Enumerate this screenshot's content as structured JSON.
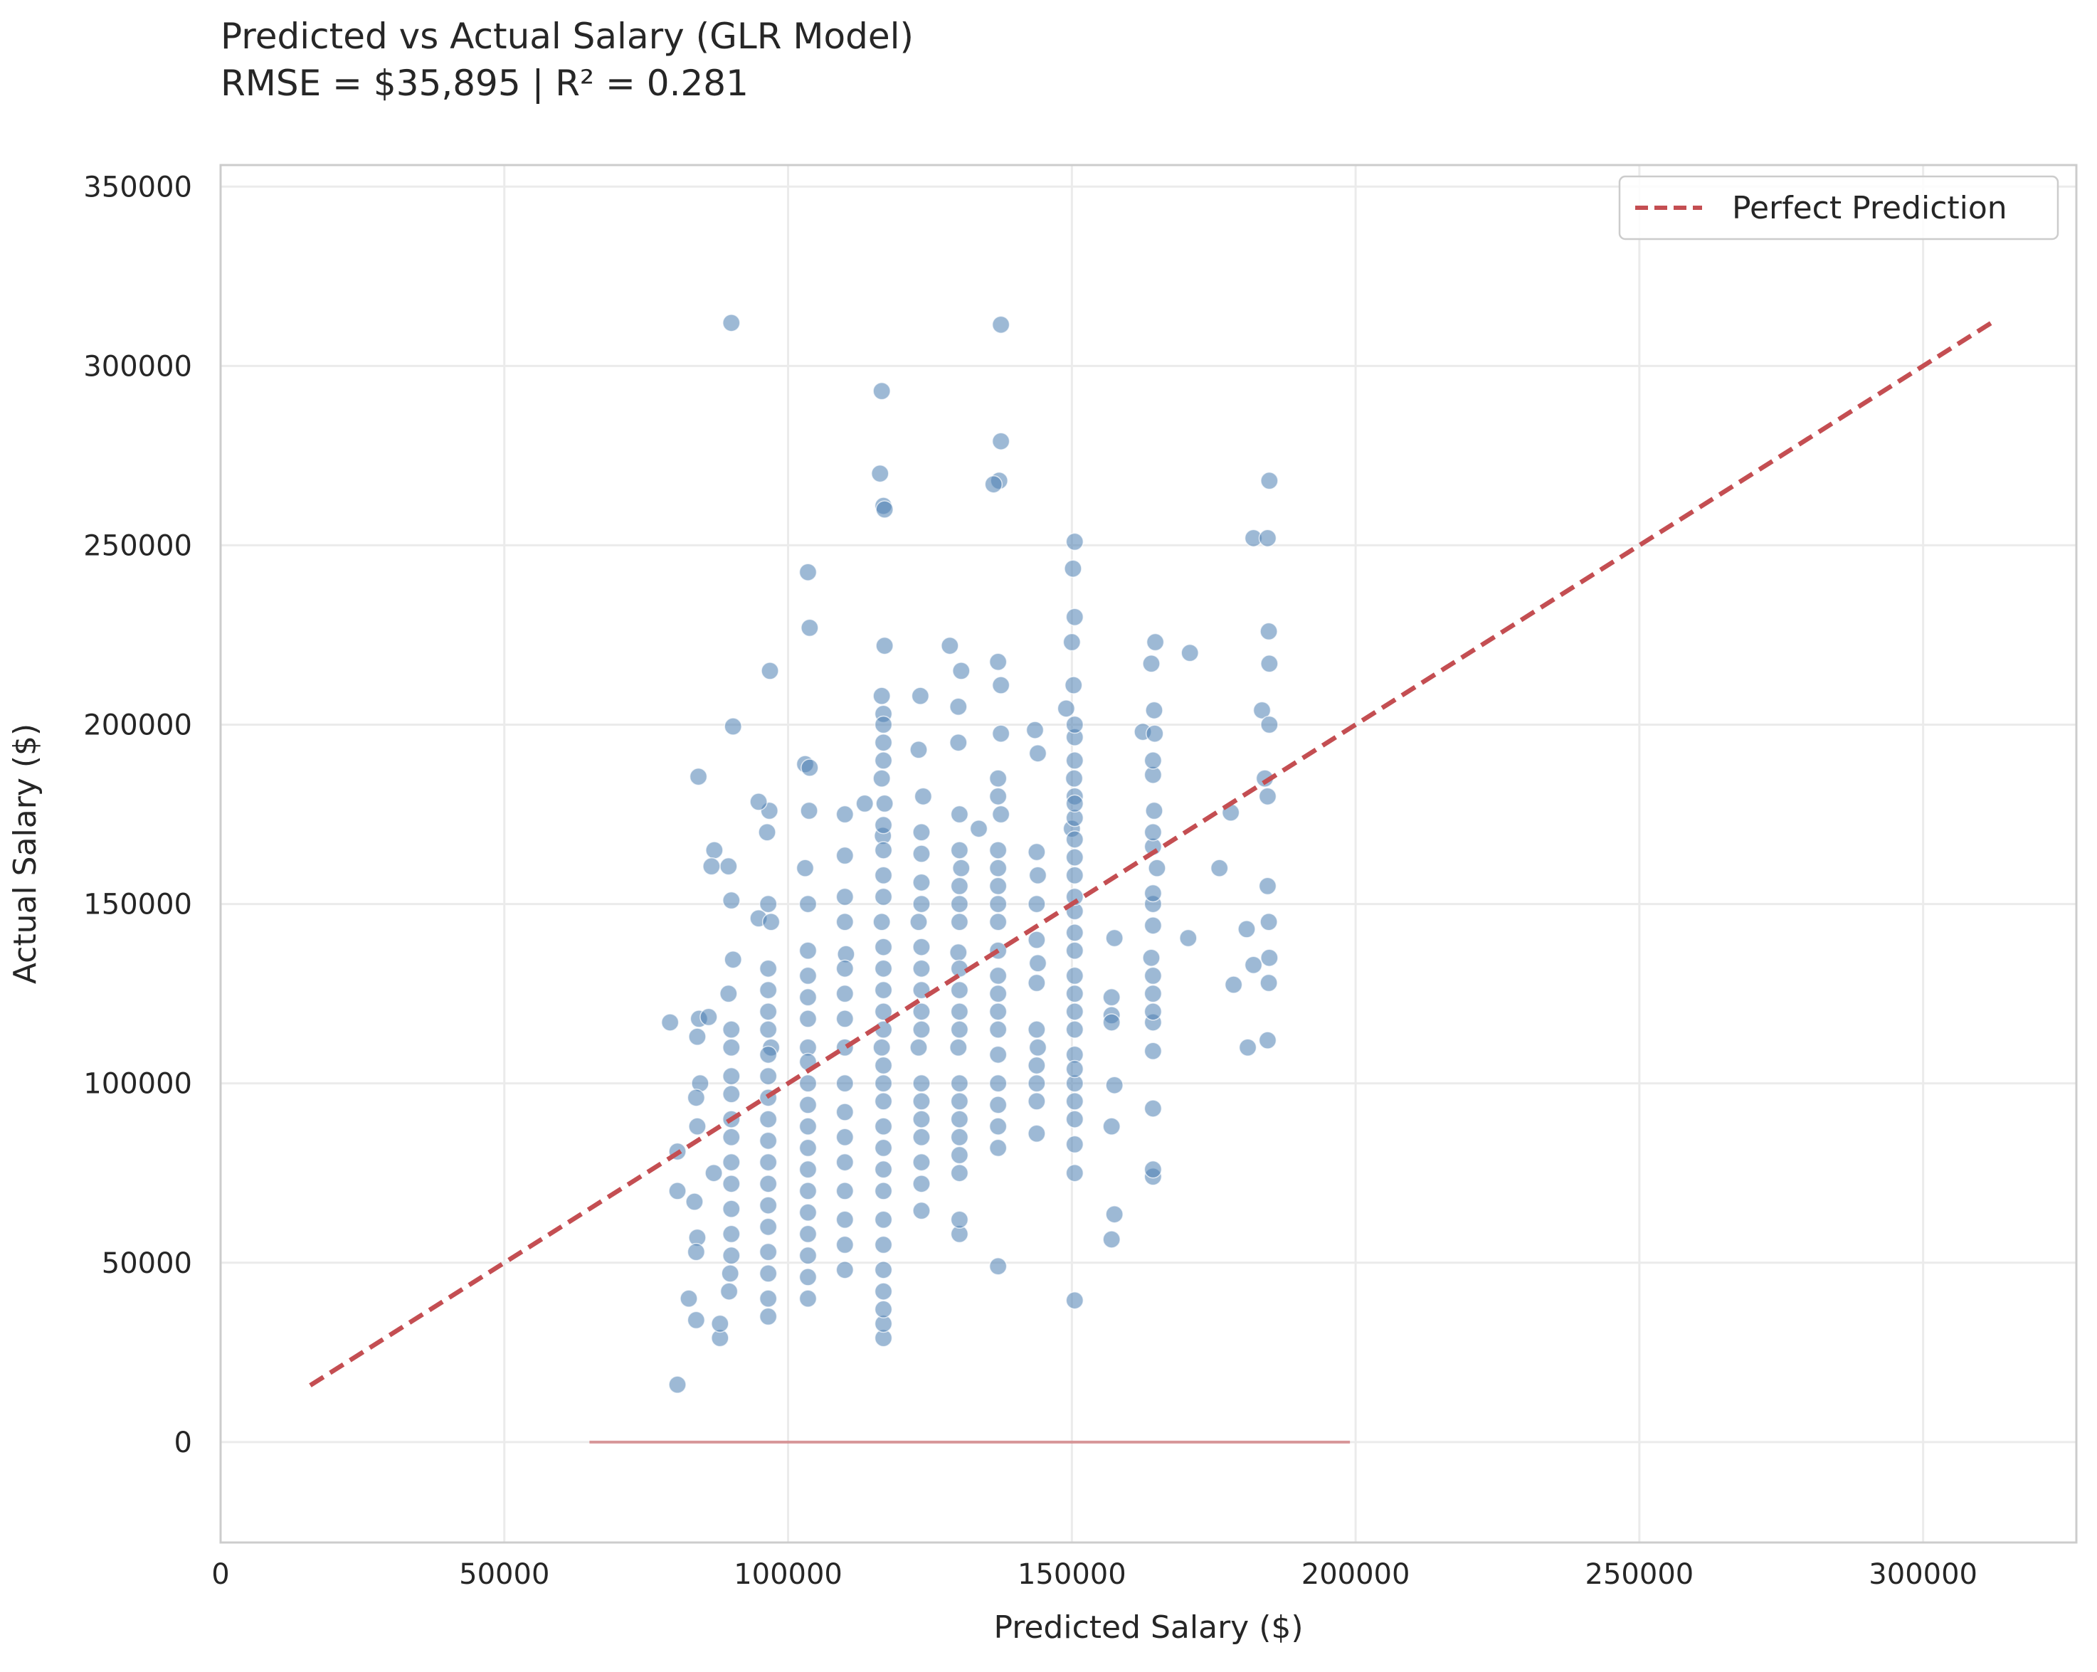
{
  "chart_data": {
    "type": "scatter",
    "title": "Predicted vs Actual Salary (GLR Model)",
    "subtitle": "RMSE = $35,895 | R² = 0.281",
    "xlabel": "Predicted Salary ($)",
    "ylabel": "Actual Salary ($)",
    "xlim": [
      0,
      327000
    ],
    "ylim": [
      -28000,
      356000
    ],
    "xticks": [
      "0",
      "50000",
      "100000",
      "150000",
      "200000",
      "250000",
      "300000"
    ],
    "yticks": [
      "0",
      "50000",
      "100000",
      "150000",
      "200000",
      "250000",
      "300000",
      "350000"
    ],
    "grid": true,
    "legend": {
      "position": "top-right",
      "entries": [
        "Perfect Prediction"
      ]
    },
    "reference_line": {
      "name": "Perfect Prediction",
      "x": [
        15800,
        312000
      ],
      "y": [
        15800,
        312000
      ],
      "color": "#c44e52",
      "style": "dashed"
    },
    "baseline_segment": {
      "x": [
        65000,
        199000
      ],
      "y": [
        0,
        0
      ],
      "color": "#c44e52"
    },
    "point_color": "#4c7fb3",
    "points": [
      [
        90000,
        312000
      ],
      [
        137500,
        311500
      ],
      [
        116500,
        293000
      ],
      [
        116200,
        270000
      ],
      [
        116800,
        261000
      ],
      [
        117000,
        260000
      ],
      [
        137500,
        279000
      ],
      [
        137200,
        268000
      ],
      [
        136200,
        267000
      ],
      [
        184800,
        268000
      ],
      [
        103500,
        242500
      ],
      [
        150500,
        251000
      ],
      [
        150200,
        243500
      ],
      [
        182000,
        252000
      ],
      [
        184500,
        252000
      ],
      [
        103800,
        227000
      ],
      [
        150500,
        230000
      ],
      [
        150000,
        223000
      ],
      [
        164700,
        223000
      ],
      [
        184700,
        226000
      ],
      [
        117000,
        222000
      ],
      [
        128500,
        222000
      ],
      [
        170800,
        220000
      ],
      [
        96800,
        215000
      ],
      [
        130500,
        215000
      ],
      [
        137000,
        217500
      ],
      [
        164000,
        217000
      ],
      [
        184800,
        217000
      ],
      [
        150300,
        211000
      ],
      [
        137500,
        211000
      ],
      [
        90300,
        199500
      ],
      [
        116500,
        208000
      ],
      [
        123300,
        208000
      ],
      [
        164500,
        204000
      ],
      [
        183500,
        204000
      ],
      [
        184800,
        200000
      ],
      [
        116800,
        203000
      ],
      [
        130000,
        205000
      ],
      [
        149000,
        204500
      ],
      [
        143500,
        198500
      ],
      [
        162500,
        198000
      ],
      [
        150500,
        196500
      ],
      [
        164600,
        197500
      ],
      [
        123000,
        193000
      ],
      [
        137500,
        197500
      ],
      [
        130000,
        195000
      ],
      [
        103000,
        189000
      ],
      [
        103800,
        188000
      ],
      [
        144000,
        192000
      ],
      [
        84200,
        185500
      ],
      [
        110000,
        175000
      ],
      [
        103700,
        176000
      ],
      [
        116500,
        185000
      ],
      [
        150400,
        185000
      ],
      [
        184000,
        185000
      ],
      [
        123800,
        180000
      ],
      [
        117000,
        178000
      ],
      [
        96700,
        176000
      ],
      [
        113500,
        178000
      ],
      [
        137500,
        175000
      ],
      [
        164500,
        176000
      ],
      [
        178000,
        175500
      ],
      [
        150500,
        180000
      ],
      [
        94800,
        178500
      ],
      [
        87000,
        165000
      ],
      [
        96300,
        170000
      ],
      [
        110000,
        163500
      ],
      [
        133600,
        171000
      ],
      [
        150000,
        171000
      ],
      [
        184500,
        180000
      ],
      [
        116700,
        169000
      ],
      [
        123500,
        164000
      ],
      [
        143800,
        164500
      ],
      [
        89500,
        160500
      ],
      [
        86500,
        160500
      ],
      [
        176000,
        160000
      ],
      [
        90000,
        151000
      ],
      [
        103000,
        160000
      ],
      [
        130500,
        160000
      ],
      [
        165000,
        160000
      ],
      [
        144000,
        158000
      ],
      [
        157500,
        140500
      ],
      [
        170500,
        140500
      ],
      [
        180800,
        143000
      ],
      [
        184700,
        145000
      ],
      [
        84300,
        118000
      ],
      [
        79200,
        117000
      ],
      [
        84000,
        113000
      ],
      [
        86000,
        118500
      ],
      [
        89500,
        125000
      ],
      [
        90300,
        134500
      ],
      [
        94800,
        146000
      ],
      [
        97000,
        145000
      ],
      [
        103500,
        137000
      ],
      [
        110200,
        136000
      ],
      [
        116500,
        145000
      ],
      [
        123000,
        145000
      ],
      [
        130000,
        136500
      ],
      [
        137000,
        137000
      ],
      [
        144000,
        133500
      ],
      [
        150500,
        137000
      ],
      [
        164000,
        135000
      ],
      [
        178500,
        127500
      ],
      [
        182000,
        133000
      ],
      [
        184800,
        135000
      ],
      [
        184700,
        128000
      ],
      [
        184500,
        112000
      ],
      [
        181000,
        110000
      ],
      [
        184500,
        155000
      ],
      [
        164300,
        125000
      ],
      [
        157000,
        119000
      ],
      [
        150500,
        108000
      ],
      [
        144000,
        110000
      ],
      [
        137000,
        108000
      ],
      [
        130000,
        110000
      ],
      [
        123000,
        110000
      ],
      [
        116500,
        110000
      ],
      [
        110000,
        110000
      ],
      [
        103500,
        110000
      ],
      [
        97000,
        110000
      ],
      [
        90000,
        110000
      ],
      [
        84500,
        100000
      ],
      [
        83800,
        96000
      ],
      [
        80500,
        81000
      ],
      [
        84000,
        88000
      ],
      [
        86900,
        75000
      ],
      [
        80500,
        70000
      ],
      [
        83500,
        67000
      ],
      [
        84000,
        57000
      ],
      [
        83800,
        53000
      ],
      [
        82500,
        40000
      ],
      [
        83800,
        34000
      ],
      [
        80500,
        16000
      ],
      [
        88000,
        29000
      ],
      [
        88000,
        33000
      ],
      [
        89600,
        42000
      ],
      [
        89800,
        47000
      ],
      [
        90000,
        52000
      ],
      [
        90000,
        58000
      ],
      [
        90000,
        65000
      ],
      [
        90000,
        72000
      ],
      [
        90000,
        78000
      ],
      [
        90000,
        85000
      ],
      [
        90000,
        90000
      ],
      [
        90000,
        97000
      ],
      [
        90000,
        102000
      ],
      [
        90000,
        115000
      ],
      [
        96500,
        35000
      ],
      [
        96500,
        40000
      ],
      [
        96500,
        47000
      ],
      [
        96500,
        53000
      ],
      [
        96500,
        60000
      ],
      [
        96500,
        66000
      ],
      [
        96500,
        72000
      ],
      [
        96500,
        78000
      ],
      [
        96500,
        84000
      ],
      [
        96500,
        90000
      ],
      [
        96500,
        96000
      ],
      [
        96500,
        102000
      ],
      [
        96500,
        108000
      ],
      [
        96500,
        115000
      ],
      [
        96500,
        120000
      ],
      [
        96500,
        126000
      ],
      [
        96500,
        132000
      ],
      [
        96500,
        150000
      ],
      [
        103500,
        40000
      ],
      [
        103500,
        46000
      ],
      [
        103500,
        52000
      ],
      [
        103500,
        58000
      ],
      [
        103500,
        64000
      ],
      [
        103500,
        70000
      ],
      [
        103500,
        76000
      ],
      [
        103500,
        82000
      ],
      [
        103500,
        88000
      ],
      [
        103500,
        94000
      ],
      [
        103500,
        100000
      ],
      [
        103500,
        106000
      ],
      [
        103500,
        118000
      ],
      [
        103500,
        124000
      ],
      [
        103500,
        130000
      ],
      [
        103500,
        150000
      ],
      [
        110000,
        48000
      ],
      [
        110000,
        55000
      ],
      [
        110000,
        62000
      ],
      [
        110000,
        70000
      ],
      [
        110000,
        78000
      ],
      [
        110000,
        85000
      ],
      [
        110000,
        92000
      ],
      [
        110000,
        100000
      ],
      [
        110000,
        118000
      ],
      [
        110000,
        125000
      ],
      [
        110000,
        132000
      ],
      [
        110000,
        145000
      ],
      [
        110000,
        152000
      ],
      [
        116800,
        29000
      ],
      [
        116800,
        33000
      ],
      [
        116800,
        37000
      ],
      [
        116800,
        42000
      ],
      [
        116800,
        48000
      ],
      [
        116800,
        55000
      ],
      [
        116800,
        62000
      ],
      [
        116800,
        70000
      ],
      [
        116800,
        76000
      ],
      [
        116800,
        82000
      ],
      [
        116800,
        88000
      ],
      [
        116800,
        95000
      ],
      [
        116800,
        100000
      ],
      [
        116800,
        105000
      ],
      [
        116800,
        115000
      ],
      [
        116800,
        120000
      ],
      [
        116800,
        126000
      ],
      [
        116800,
        132000
      ],
      [
        116800,
        138000
      ],
      [
        116800,
        152000
      ],
      [
        116800,
        158000
      ],
      [
        116800,
        165000
      ],
      [
        116800,
        172000
      ],
      [
        116800,
        190000
      ],
      [
        116800,
        195000
      ],
      [
        116800,
        200000
      ],
      [
        123500,
        64500
      ],
      [
        123500,
        72000
      ],
      [
        123500,
        78000
      ],
      [
        123500,
        85000
      ],
      [
        123500,
        90000
      ],
      [
        123500,
        95000
      ],
      [
        123500,
        100000
      ],
      [
        123500,
        115000
      ],
      [
        123500,
        120000
      ],
      [
        123500,
        126000
      ],
      [
        123500,
        132000
      ],
      [
        123500,
        138000
      ],
      [
        123500,
        150000
      ],
      [
        123500,
        156000
      ],
      [
        123500,
        170000
      ],
      [
        130200,
        58000
      ],
      [
        130200,
        62000
      ],
      [
        130200,
        75000
      ],
      [
        130200,
        80000
      ],
      [
        130200,
        85000
      ],
      [
        130200,
        90000
      ],
      [
        130200,
        95000
      ],
      [
        130200,
        100000
      ],
      [
        130200,
        115000
      ],
      [
        130200,
        120000
      ],
      [
        130200,
        126000
      ],
      [
        130200,
        132000
      ],
      [
        130200,
        145000
      ],
      [
        130200,
        150000
      ],
      [
        130200,
        155000
      ],
      [
        130200,
        165000
      ],
      [
        130200,
        175000
      ],
      [
        137000,
        49000
      ],
      [
        137000,
        82000
      ],
      [
        137000,
        88000
      ],
      [
        137000,
        94000
      ],
      [
        137000,
        100000
      ],
      [
        137000,
        115000
      ],
      [
        137000,
        120000
      ],
      [
        137000,
        125000
      ],
      [
        137000,
        130000
      ],
      [
        137000,
        145000
      ],
      [
        137000,
        150000
      ],
      [
        137000,
        155000
      ],
      [
        137000,
        160000
      ],
      [
        137000,
        165000
      ],
      [
        137000,
        180000
      ],
      [
        137000,
        185000
      ],
      [
        143800,
        86000
      ],
      [
        143800,
        95000
      ],
      [
        143800,
        100000
      ],
      [
        143800,
        105000
      ],
      [
        143800,
        115000
      ],
      [
        143800,
        128000
      ],
      [
        143800,
        140000
      ],
      [
        143800,
        150000
      ],
      [
        150500,
        39500
      ],
      [
        150500,
        75000
      ],
      [
        150500,
        83000
      ],
      [
        150500,
        90000
      ],
      [
        150500,
        95000
      ],
      [
        150500,
        100000
      ],
      [
        150500,
        104000
      ],
      [
        150500,
        115000
      ],
      [
        150500,
        120000
      ],
      [
        150500,
        125000
      ],
      [
        150500,
        130000
      ],
      [
        150500,
        142000
      ],
      [
        150500,
        148000
      ],
      [
        150500,
        152000
      ],
      [
        150500,
        158000
      ],
      [
        150500,
        163000
      ],
      [
        150500,
        168000
      ],
      [
        150500,
        174000
      ],
      [
        150500,
        178000
      ],
      [
        150500,
        190000
      ],
      [
        150500,
        200000
      ],
      [
        157000,
        56500
      ],
      [
        157500,
        63500
      ],
      [
        157000,
        88000
      ],
      [
        157500,
        99500
      ],
      [
        157000,
        117000
      ],
      [
        157000,
        124000
      ],
      [
        164300,
        74000
      ],
      [
        164300,
        76000
      ],
      [
        164300,
        93000
      ],
      [
        164300,
        109000
      ],
      [
        164300,
        117000
      ],
      [
        164300,
        120000
      ],
      [
        164300,
        130000
      ],
      [
        164300,
        144000
      ],
      [
        164300,
        150000
      ],
      [
        164300,
        153000
      ],
      [
        164300,
        166000
      ],
      [
        164300,
        170000
      ],
      [
        164300,
        186000
      ],
      [
        164300,
        190000
      ]
    ]
  }
}
